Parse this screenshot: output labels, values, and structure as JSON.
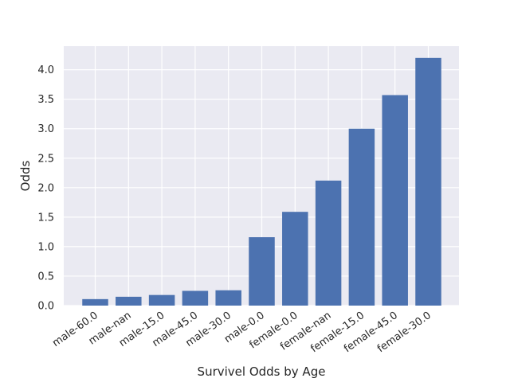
{
  "chart_data": {
    "type": "bar",
    "title": "",
    "xlabel": "Survivel Odds by Age",
    "ylabel": "Odds",
    "categories": [
      "male-60.0",
      "male-nan",
      "male-15.0",
      "male-45.0",
      "male-30.0",
      "male-0.0",
      "female-0.0",
      "female-nan",
      "female-15.0",
      "female-45.0",
      "female-30.0"
    ],
    "values": [
      0.11,
      0.15,
      0.18,
      0.25,
      0.26,
      1.16,
      1.59,
      2.12,
      3.0,
      3.57,
      4.2
    ],
    "ylim": [
      0,
      4.4
    ],
    "yticks": [
      0.0,
      0.5,
      1.0,
      1.5,
      2.0,
      2.5,
      3.0,
      3.5,
      4.0
    ],
    "ytick_labels": [
      "0.0",
      "0.5",
      "1.0",
      "1.5",
      "2.0",
      "2.5",
      "3.0",
      "3.5",
      "4.0"
    ],
    "grid": true,
    "legend": "none",
    "colors": {
      "bar": "#4c72b0",
      "plot_background": "#eaeaf2",
      "grid": "#ffffff",
      "text": "#262626"
    }
  }
}
